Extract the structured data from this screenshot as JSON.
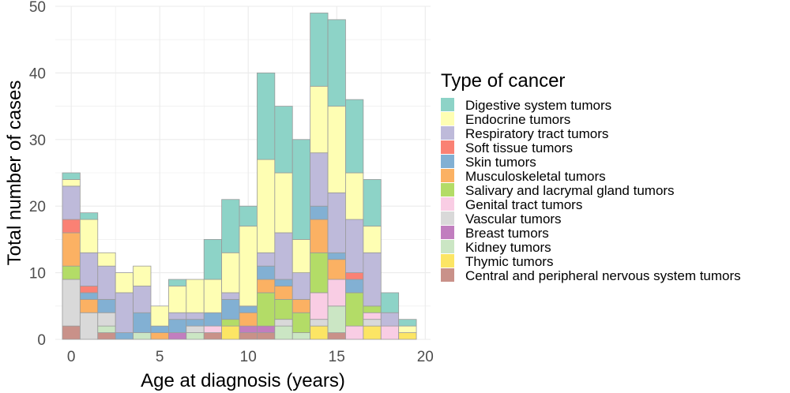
{
  "chart_data": {
    "type": "bar",
    "stacked": true,
    "xlabel": "Age at diagnosis (years)",
    "ylabel": "Total number of cases",
    "xlim": [
      -0.9,
      20.3
    ],
    "ylim": [
      0,
      50
    ],
    "x_ticks": [
      "0",
      "5",
      "10",
      "15",
      "20"
    ],
    "y_ticks": [
      "0",
      "10",
      "20",
      "30",
      "40",
      "50"
    ],
    "grid": true,
    "legend": {
      "title": "Type of cancer",
      "position": "right"
    },
    "categories": [
      0,
      1,
      2,
      3,
      4,
      5,
      6,
      7,
      8,
      9,
      10,
      11,
      12,
      13,
      14,
      15,
      16,
      17,
      18,
      19
    ],
    "series": [
      {
        "name": "Central and peripheral nervous system tumors",
        "color": "#c99189",
        "values": [
          2,
          0,
          1,
          0,
          0,
          0,
          0,
          0,
          1,
          0,
          1,
          1,
          0,
          0,
          0,
          1,
          0,
          0,
          0,
          0
        ]
      },
      {
        "name": "Thymic tumors",
        "color": "#fce564",
        "values": [
          0,
          0,
          0,
          0,
          0,
          0,
          0,
          0,
          0,
          2,
          0,
          0,
          0,
          0,
          2,
          0,
          0,
          2,
          0,
          1
        ]
      },
      {
        "name": "Kidney tumors",
        "color": "#cbe6c4",
        "values": [
          0,
          0,
          1,
          0,
          1,
          0,
          0,
          1,
          0,
          0,
          0,
          0,
          2,
          1,
          0,
          4,
          0,
          0,
          0,
          0
        ]
      },
      {
        "name": "Breast tumors",
        "color": "#c17ebf",
        "values": [
          0,
          0,
          0,
          0,
          0,
          0,
          1,
          0,
          0,
          0,
          1,
          1,
          0,
          0,
          0,
          0,
          0,
          0,
          0,
          0
        ]
      },
      {
        "name": "Vascular tumors",
        "color": "#d9d9d9",
        "values": [
          7,
          4,
          2,
          0,
          0,
          0,
          0,
          1,
          0,
          0,
          0,
          0,
          1,
          0,
          1,
          0,
          0,
          1,
          0,
          0
        ]
      },
      {
        "name": "Genital tract tumors",
        "color": "#f9cde4",
        "values": [
          0,
          0,
          0,
          0,
          0,
          0,
          0,
          0,
          1,
          0,
          0,
          0,
          0,
          0,
          4,
          4,
          2,
          1,
          2,
          0
        ]
      },
      {
        "name": "Salivary and lacrymal gland tumors",
        "color": "#b3dc67",
        "values": [
          2,
          0,
          0,
          0,
          0,
          0,
          0,
          0,
          0,
          1,
          0,
          5,
          3,
          3,
          6,
          0,
          5,
          1,
          0,
          0
        ]
      },
      {
        "name": "Musculoskeletal tumors",
        "color": "#fbb163",
        "values": [
          5,
          2,
          0,
          0,
          0,
          1,
          0,
          0,
          0,
          0,
          2,
          2,
          2,
          2,
          5,
          3,
          0,
          0,
          0,
          0
        ]
      },
      {
        "name": "Skin tumors",
        "color": "#82b0d3",
        "values": [
          0,
          1,
          2,
          1,
          3,
          1,
          2,
          1,
          2,
          3,
          1,
          2,
          1,
          0,
          2,
          1,
          2,
          0,
          0,
          0
        ]
      },
      {
        "name": "Soft tissue tumors",
        "color": "#fa8174",
        "values": [
          2,
          1,
          0,
          0,
          0,
          0,
          0,
          0,
          0,
          0,
          0,
          0,
          0,
          0,
          0,
          0,
          1,
          0,
          0,
          0
        ]
      },
      {
        "name": "Respiratory tract tumors",
        "color": "#bebada",
        "values": [
          5,
          5,
          5,
          6,
          4,
          0,
          1,
          1,
          0,
          1,
          0,
          2,
          7,
          4,
          8,
          9,
          8,
          8,
          2,
          0
        ]
      },
      {
        "name": "Endocrine tumors",
        "color": "#fefeb3",
        "values": [
          1,
          5,
          2,
          3,
          3,
          3,
          4,
          5,
          5,
          6,
          12,
          14,
          9,
          5,
          10,
          13,
          7,
          4,
          0,
          1
        ]
      },
      {
        "name": "Digestive system tumors",
        "color": "#8dd3c7",
        "values": [
          1,
          1,
          0,
          0,
          0,
          0,
          1,
          0,
          6,
          8,
          3,
          13,
          10,
          15,
          11,
          13,
          11,
          7,
          3,
          1
        ]
      }
    ]
  }
}
